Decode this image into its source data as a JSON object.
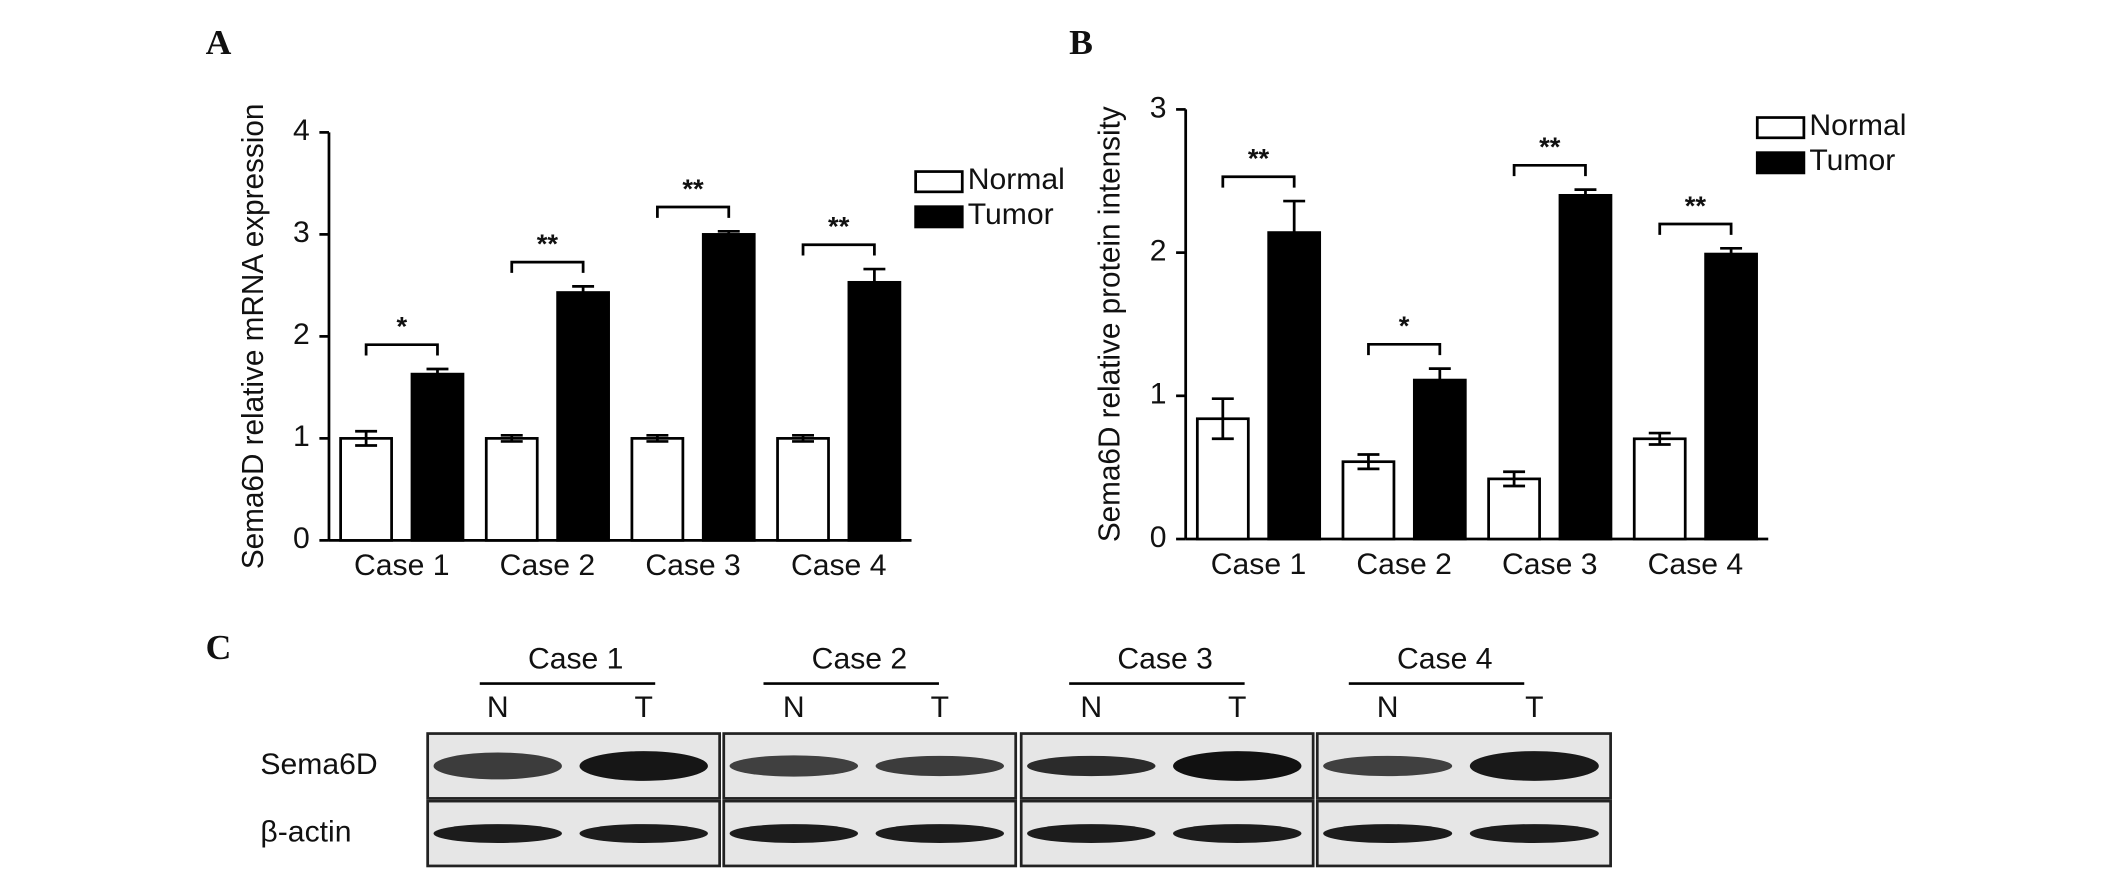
{
  "panels": [
    "A",
    "B",
    "C"
  ],
  "chart_data": [
    {
      "type": "bar",
      "ylabel": "Sema6D relative mRNA expression",
      "categories": [
        "Case 1",
        "Case 2",
        "Case 3",
        "Case 4"
      ],
      "series": [
        {
          "name": "Normal",
          "color": "#ffffff",
          "values": [
            1,
            1,
            1,
            1
          ],
          "errors": [
            0.07,
            0.03,
            0.03,
            0.03
          ]
        },
        {
          "name": "Tumor",
          "color": "#000000",
          "values": [
            1.63,
            2.43,
            3.0,
            2.53
          ],
          "errors": [
            0.05,
            0.06,
            0.03,
            0.13
          ]
        }
      ],
      "annotations": [
        "*",
        "**",
        "**",
        "**"
      ],
      "ylim": [
        0,
        4
      ],
      "yticks": [
        0,
        1,
        2,
        3,
        4
      ],
      "grid": false,
      "legend": "upper right"
    },
    {
      "type": "bar",
      "ylabel": "Sema6D relative protein intensity",
      "categories": [
        "Case 1",
        "Case 2",
        "Case 3",
        "Case 4"
      ],
      "series": [
        {
          "name": "Normal",
          "color": "#ffffff",
          "values": [
            0.84,
            0.54,
            0.42,
            0.7
          ],
          "errors": [
            0.14,
            0.05,
            0.05,
            0.04
          ]
        },
        {
          "name": "Tumor",
          "color": "#000000",
          "values": [
            2.14,
            1.11,
            2.4,
            1.99
          ],
          "errors": [
            0.22,
            0.08,
            0.04,
            0.04
          ]
        }
      ],
      "annotations": [
        "**",
        "*",
        "**",
        "**"
      ],
      "ylim": [
        0,
        3
      ],
      "yticks": [
        0,
        1,
        2,
        3
      ],
      "grid": false,
      "legend": "upper right"
    }
  ],
  "blot": {
    "cases": [
      "Case 1",
      "Case 2",
      "Case 3",
      "Case 4"
    ],
    "lanes": [
      "N",
      "T"
    ],
    "rows": [
      "Sema6D",
      "β-actin"
    ]
  }
}
